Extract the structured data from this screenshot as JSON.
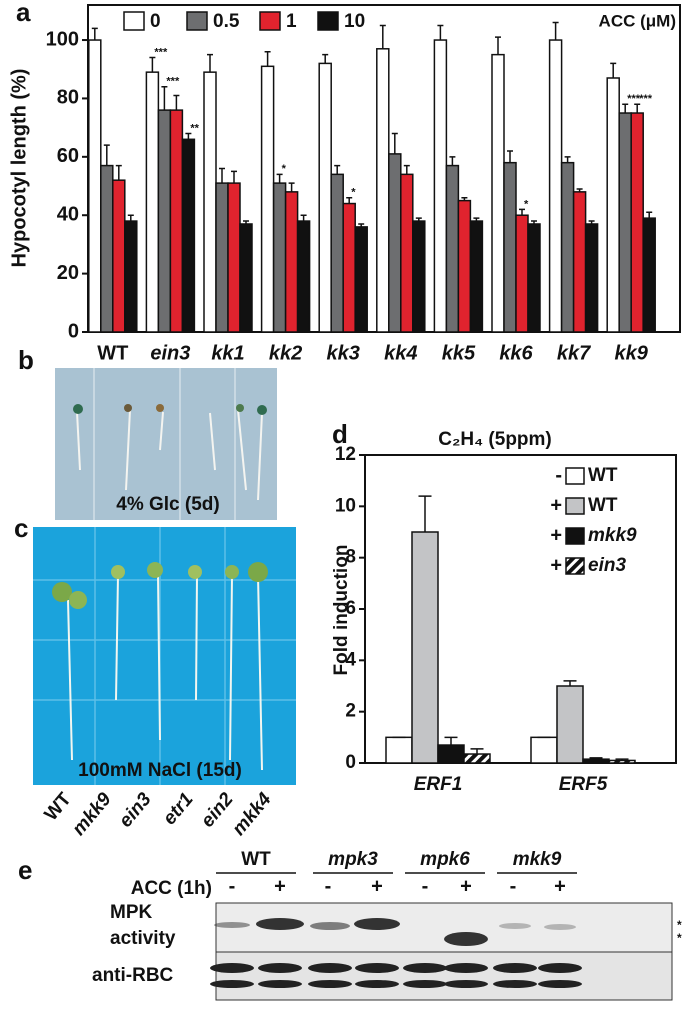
{
  "chart_data": [
    {
      "type": "bar",
      "y_label": "Hypocotyl length (%)",
      "legend_title": "ACC (μM)",
      "legend": "top",
      "categories": [
        "WT",
        "ein3",
        "kk1",
        "kk2",
        "kk3",
        "kk4",
        "kk5",
        "kk6",
        "kk7",
        "kk9"
      ],
      "ylim": [
        0,
        112
      ],
      "yticks": [
        0,
        20,
        40,
        60,
        80,
        100
      ],
      "grid": false,
      "series": [
        {
          "name": "0",
          "color": "#ffffff",
          "values": [
            100,
            89,
            89,
            91,
            92,
            97,
            100,
            95,
            100,
            87
          ],
          "errors": [
            4,
            5,
            6,
            5,
            3,
            8,
            5,
            6,
            6,
            5
          ],
          "sig": [
            null,
            "***",
            null,
            null,
            null,
            null,
            null,
            null,
            null,
            null
          ]
        },
        {
          "name": "0.5",
          "color": "#6d6e70",
          "values": [
            57,
            76,
            51,
            51,
            54,
            61,
            57,
            58,
            58,
            75
          ],
          "errors": [
            7,
            8,
            5,
            3,
            3,
            7,
            3,
            4,
            2,
            3
          ],
          "sig": [
            null,
            "***",
            null,
            "*",
            null,
            null,
            null,
            null,
            null,
            "***"
          ]
        },
        {
          "name": "1",
          "color": "#e0232e",
          "values": [
            52,
            76,
            51,
            48,
            44,
            54,
            45,
            40,
            48,
            75
          ],
          "errors": [
            5,
            5,
            4,
            3,
            2,
            3,
            1,
            2,
            1,
            3
          ],
          "sig": [
            null,
            null,
            null,
            null,
            "*",
            null,
            null,
            "*",
            null,
            "***"
          ]
        },
        {
          "name": "10",
          "color": "#111111",
          "values": [
            38,
            66,
            37,
            38,
            36,
            38,
            38,
            37,
            37,
            39
          ],
          "errors": [
            2,
            2,
            1,
            2,
            1,
            1,
            1,
            1,
            1,
            2
          ],
          "sig": [
            null,
            "**",
            null,
            null,
            null,
            null,
            null,
            null,
            null,
            null
          ]
        }
      ]
    },
    {
      "type": "bar",
      "title": "C₂H₄ (5ppm)",
      "y_label": "Fold induction",
      "legend": "top-right",
      "categories": [
        "ERF1",
        "ERF5"
      ],
      "ylim": [
        0,
        12
      ],
      "yticks": [
        0,
        2,
        4,
        6,
        8,
        10,
        12
      ],
      "grid": false,
      "series": [
        {
          "name": "WT",
          "treatment": "-",
          "color": "#ffffff",
          "values": [
            1.0,
            1.0
          ],
          "errors": [
            0,
            0
          ]
        },
        {
          "name": "WT",
          "treatment": "+",
          "color": "#c3c4c6",
          "values": [
            9.0,
            3.0
          ],
          "errors": [
            1.4,
            0.2
          ]
        },
        {
          "name": "mkk9",
          "treatment": "+",
          "color": "#111111",
          "values": [
            0.7,
            0.15
          ],
          "errors": [
            0.3,
            0.05
          ]
        },
        {
          "name": "ein3",
          "treatment": "+",
          "color": "hatch",
          "values": [
            0.35,
            0.1
          ],
          "errors": [
            0.2,
            0.05
          ]
        }
      ]
    }
  ],
  "panel_labels": [
    "a",
    "b",
    "c",
    "d",
    "e"
  ],
  "photo_b": {
    "caption": "4% Glc (5d)"
  },
  "photo_c": {
    "caption": "100mM NaCl (15d)",
    "genotypes": [
      "WT",
      "mkk9",
      "ein3",
      "etr1",
      "ein2",
      "mkk4"
    ]
  },
  "blot": {
    "genotypes": [
      "WT",
      "mpk3",
      "mpk6",
      "mkk9"
    ],
    "treatment_label": "ACC (1h)",
    "treatments": [
      "-",
      "+",
      "-",
      "+",
      "-",
      "+",
      "-",
      "+"
    ],
    "row_labels": [
      [
        "MPK",
        "activity"
      ],
      [
        "anti-RBC"
      ]
    ],
    "markers": [
      "*",
      "*"
    ]
  }
}
